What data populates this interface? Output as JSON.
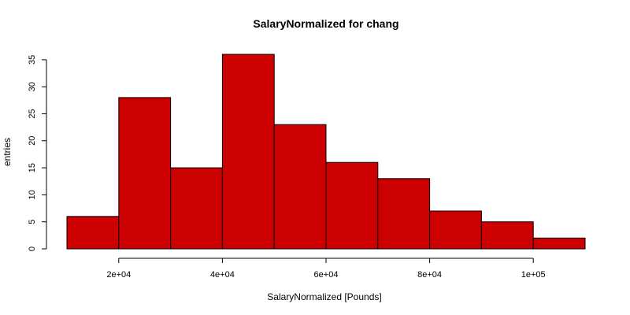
{
  "chart_data": {
    "type": "bar",
    "title": "SalaryNormalized for chang",
    "xlabel": "SalaryNormalized [Pounds]",
    "ylabel": "entries",
    "bins": [
      {
        "start": 10000,
        "end": 20000,
        "count": 6
      },
      {
        "start": 20000,
        "end": 30000,
        "count": 28
      },
      {
        "start": 30000,
        "end": 40000,
        "count": 15
      },
      {
        "start": 40000,
        "end": 50000,
        "count": 36
      },
      {
        "start": 50000,
        "end": 60000,
        "count": 23
      },
      {
        "start": 60000,
        "end": 70000,
        "count": 16
      },
      {
        "start": 70000,
        "end": 80000,
        "count": 13
      },
      {
        "start": 80000,
        "end": 90000,
        "count": 7
      },
      {
        "start": 90000,
        "end": 100000,
        "count": 5
      },
      {
        "start": 100000,
        "end": 110000,
        "count": 2
      }
    ],
    "xlim": [
      10000,
      110000
    ],
    "ylim": [
      0,
      36
    ],
    "x_ticks": [
      {
        "value": 20000,
        "label": "2e+04"
      },
      {
        "value": 40000,
        "label": "4e+04"
      },
      {
        "value": 60000,
        "label": "6e+04"
      },
      {
        "value": 80000,
        "label": "8e+04"
      },
      {
        "value": 100000,
        "label": "1e+05"
      }
    ],
    "y_ticks": [
      {
        "value": 0,
        "label": "0"
      },
      {
        "value": 5,
        "label": "5"
      },
      {
        "value": 10,
        "label": "10"
      },
      {
        "value": 15,
        "label": "15"
      },
      {
        "value": 20,
        "label": "20"
      },
      {
        "value": 25,
        "label": "25"
      },
      {
        "value": 30,
        "label": "30"
      },
      {
        "value": 35,
        "label": "35"
      }
    ],
    "bar_color": "#cc0000",
    "grid": false
  }
}
